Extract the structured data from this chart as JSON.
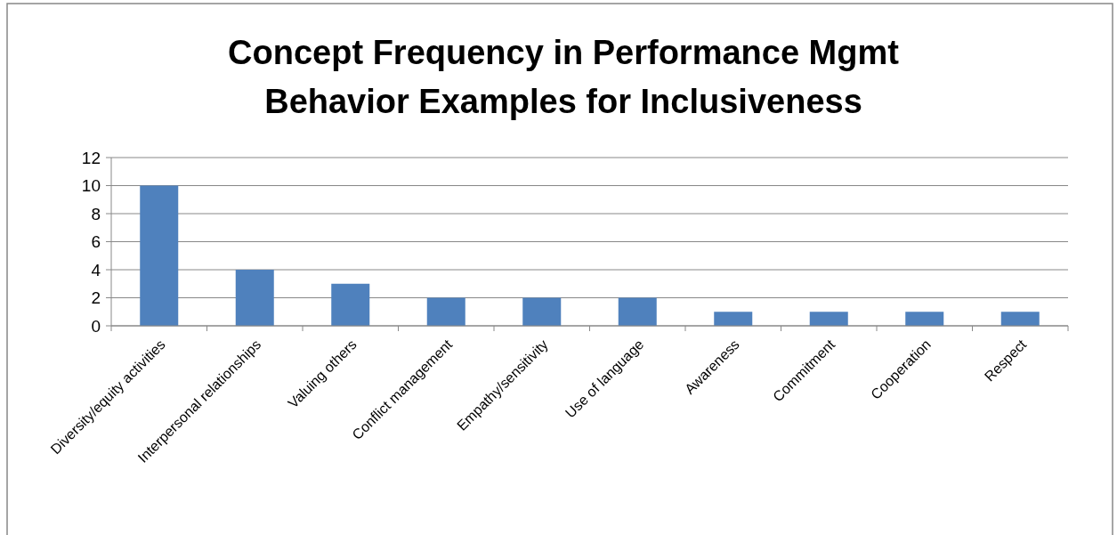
{
  "chart_data": {
    "type": "bar",
    "title": "Concept Frequency in Performance Mgmt Behavior Examples for Inclusiveness",
    "categories": [
      "Diversity/equity activities",
      "Interpersonal relationships",
      "Valuing others",
      "Conflict management",
      "Empathy/sensitivity",
      "Use of language",
      "Awareness",
      "Commitment",
      "Cooperation",
      "Respect"
    ],
    "values": [
      10,
      4,
      3,
      2,
      2,
      2,
      1,
      1,
      1,
      1
    ],
    "color": "#4f81bd",
    "ylim": [
      0,
      12
    ],
    "yticks": [
      0,
      2,
      4,
      6,
      8,
      10,
      12
    ],
    "grid": "y"
  }
}
